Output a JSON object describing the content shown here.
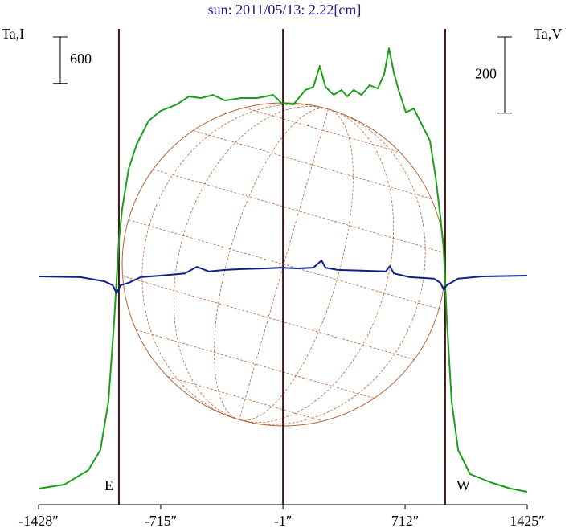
{
  "chart_data": {
    "type": "line",
    "title": "sun: 2011/05/13: 2.22[cm]",
    "y_label": "Ta,I",
    "y2_label": "Ta,V",
    "xlim": [
      -1428,
      1425
    ],
    "xticks": [
      {
        "value": -1428,
        "label": "-1428″"
      },
      {
        "value": -715,
        "label": "-715″"
      },
      {
        "value": -1,
        "label": "-1″"
      },
      {
        "value": 712,
        "label": "712″"
      },
      {
        "value": 1425,
        "label": "1425″"
      }
    ],
    "ylim": [
      0,
      6000
    ],
    "y2lim": [
      -570,
      650
    ],
    "scale_bar_y": 600,
    "scale_bar_y2": 200,
    "vlines": [
      -959,
      -1,
      946
    ],
    "limb_labels": [
      "E",
      "W"
    ],
    "series": [
      {
        "color": "#1aa01a",
        "x": [
          -1428,
          -1278,
          -1137,
          -1067,
          -1020,
          -987,
          -959,
          -940,
          -902,
          -856,
          -785,
          -715,
          -621,
          -550,
          -480,
          -410,
          -339,
          -245,
          -152,
          -58,
          -11,
          60,
          130,
          177,
          214,
          247,
          294,
          341,
          374,
          412,
          458,
          505,
          552,
          590,
          618,
          646,
          674,
          717,
          763,
          810,
          857,
          890,
          918,
          937,
          956,
          984,
          1022,
          1092,
          1209,
          1327,
          1425
        ],
        "values": [
          62,
          114,
          301,
          561,
          1183,
          2221,
          3259,
          3675,
          4194,
          4505,
          4816,
          4941,
          5024,
          5128,
          5107,
          5148,
          5076,
          5107,
          5107,
          5148,
          5045,
          5024,
          5211,
          5252,
          5522,
          5252,
          5148,
          5211,
          5128,
          5211,
          5148,
          5273,
          5232,
          5418,
          5750,
          5439,
          5211,
          4920,
          4972,
          4764,
          4557,
          4090,
          3571,
          3156,
          2221,
          1183,
          561,
          249,
          145,
          62,
          21
        ]
      },
      {
        "color": "#10208a",
        "axis": "y2",
        "x": [
          -1428,
          -1184,
          -1043,
          -996,
          -973,
          -949,
          -902,
          -832,
          -715,
          -574,
          -504,
          -433,
          -339,
          -245,
          -105,
          -11,
          83,
          177,
          224,
          247,
          318,
          458,
          599,
          623,
          646,
          740,
          881,
          918,
          937,
          956,
          1022,
          1162,
          1425
        ],
        "values": [
          0,
          -2,
          -13,
          -23,
          -44,
          -23,
          -17,
          -2,
          2,
          8,
          25,
          13,
          17,
          19,
          21,
          23,
          21,
          23,
          42,
          23,
          17,
          15,
          13,
          27,
          8,
          -2,
          -6,
          -17,
          -34,
          -23,
          -6,
          0,
          2
        ]
      }
    ]
  }
}
